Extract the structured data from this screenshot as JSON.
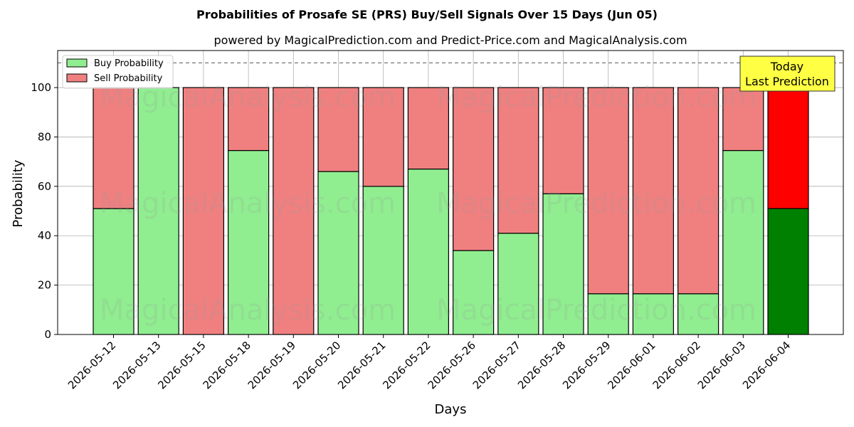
{
  "chart_data": {
    "type": "bar",
    "stacked": true,
    "title": "Probabilities of Prosafe SE (PRS) Buy/Sell Signals Over 15 Days (Jun 05)",
    "subtitle": "powered by MagicalPrediction.com and Predict-Price.com and MagicalAnalysis.com",
    "xlabel": "Days",
    "ylabel": "Probability",
    "ylim": [
      0,
      115
    ],
    "yticks": [
      0,
      20,
      40,
      60,
      80,
      100
    ],
    "grid": true,
    "legend_position": "top-left",
    "reference_line": {
      "y": 110,
      "style": "dashed"
    },
    "categories": [
      "2026-05-12",
      "2026-05-13",
      "2026-05-15",
      "2026-05-18",
      "2026-05-19",
      "2026-05-20",
      "2026-05-21",
      "2026-05-22",
      "2026-05-26",
      "2026-05-27",
      "2026-05-28",
      "2026-05-29",
      "2026-06-01",
      "2026-06-02",
      "2026-06-03",
      "2026-06-04"
    ],
    "series": [
      {
        "name": "Buy Probability",
        "color": "#90ee90",
        "highlight_color": "#008000",
        "values": [
          51,
          100,
          0,
          74.5,
          0,
          66,
          60,
          67,
          34,
          41,
          57,
          16.5,
          16.5,
          16.5,
          74.5,
          51
        ]
      },
      {
        "name": "Sell Probability",
        "color": "#f08080",
        "highlight_color": "#ff0000",
        "values": [
          49,
          0,
          100,
          25.5,
          100,
          34,
          40,
          33,
          66,
          59,
          43,
          83.5,
          83.5,
          83.5,
          25.5,
          49
        ]
      }
    ],
    "highlight_index": 15,
    "annotation": {
      "lines": [
        "Today",
        "Last Prediction"
      ],
      "background": "#ffff44"
    },
    "watermarks": [
      "MagicalAnalysis.com",
      "MagicalPrediction.com"
    ]
  }
}
